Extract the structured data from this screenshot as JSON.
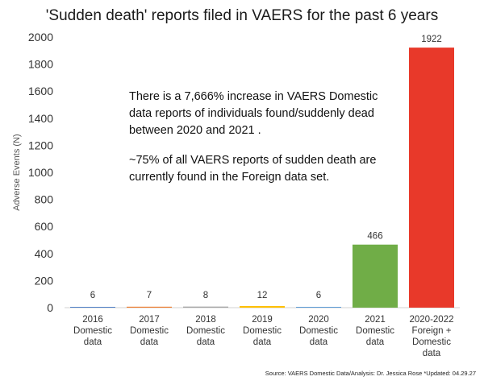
{
  "chart_data": {
    "type": "bar",
    "title": "'Sudden death' reports filed in VAERS for the past 6 years",
    "ylabel": "Adverse Events (N)",
    "xlabel": "",
    "ylim": [
      0,
      2000
    ],
    "yticks": [
      "0",
      "200",
      "400",
      "600",
      "800",
      "1000",
      "1200",
      "1400",
      "1600",
      "1800",
      "2000"
    ],
    "grid": false,
    "categories": [
      [
        "2016",
        "Domestic",
        "data"
      ],
      [
        "2017",
        "Domestic",
        "data"
      ],
      [
        "2018",
        "Domestic",
        "data"
      ],
      [
        "2019",
        "Domestic",
        "data"
      ],
      [
        "2020",
        "Domestic",
        "data"
      ],
      [
        "2021",
        "Domestic",
        "data"
      ],
      [
        "2020-2022",
        "Foreign +",
        "Domestic",
        "data"
      ]
    ],
    "values": [
      6,
      7,
      8,
      12,
      6,
      466,
      1922
    ],
    "value_labels": [
      "6",
      "7",
      "8",
      "12",
      "6",
      "466",
      "1922"
    ],
    "bar_colors": [
      "#4f7fc6",
      "#ed7d31",
      "#a5a5a5",
      "#ffc000",
      "#5b9bd5",
      "#70ad47",
      "#e8392a"
    ],
    "annotations": [
      [
        "There is a 7,666% increase in VAERS Domestic",
        "data reports of individuals found/suddenly dead",
        "between 2020 and 2021 ."
      ],
      [
        "~75% of all VAERS reports of sudden death are",
        "currently found in the Foreign data set."
      ]
    ],
    "source": "Source: VAERS Domestic Data/Analysis: Dr. Jessica Rose *Updated: 04.29.27"
  }
}
